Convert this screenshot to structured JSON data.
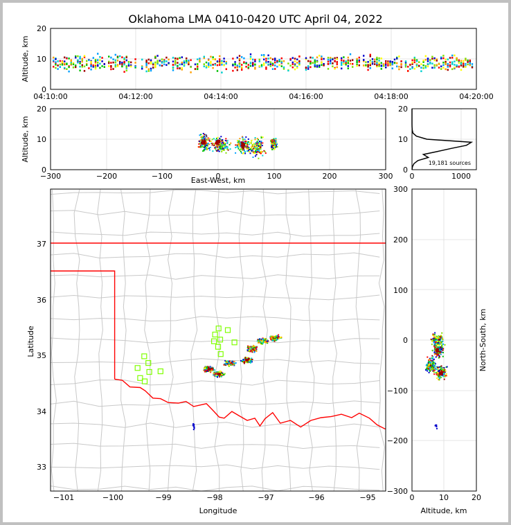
{
  "title": "Oklahoma LMA 0410-0420 UTC April 04, 2022",
  "colors": {
    "frame": "#c0c0c0",
    "state_border": "#ff0000",
    "counties": "#c8c8c8",
    "stations": "#7fff00",
    "profile": "#000000"
  },
  "panels": {
    "time_height": {
      "ylabel": "Altitude, km",
      "yticks": [
        "0",
        "10",
        "20"
      ],
      "xticks": [
        "04:10:00",
        "04:12:00",
        "04:14:00",
        "04:16:00",
        "04:18:00",
        "04:20:00"
      ]
    },
    "ew_height": {
      "ylabel": "Altitude, km",
      "xlabel": "East-West, km",
      "yticks": [
        "0",
        "10",
        "20"
      ],
      "xticks": [
        "−300",
        "−200",
        "−100",
        "0",
        "100",
        "200",
        "300"
      ]
    },
    "histogram": {
      "yticks": [
        "0",
        "10",
        "20"
      ],
      "xticks": [
        "0",
        "1000"
      ],
      "annotation": "19,181 sources"
    },
    "map": {
      "xlabel": "Longitude",
      "ylabel": "Latitude",
      "xticks": [
        "−101",
        "−100",
        "−99",
        "−98",
        "−97",
        "−96",
        "−95"
      ],
      "yticks": [
        "33",
        "34",
        "35",
        "36",
        "37"
      ]
    },
    "ns_height": {
      "xlabel": "Altitude, km",
      "ylabel": "North-South, km",
      "xticks": [
        "0",
        "10",
        "20"
      ],
      "yticks": [
        "300",
        "200",
        "100",
        "0",
        "−100",
        "−200",
        "−300"
      ]
    }
  },
  "chart_data": [
    {
      "type": "scatter",
      "panel": "time-height",
      "xlabel": "",
      "ylabel": "Altitude, km",
      "xlim": [
        "04:10:00",
        "04:20:00"
      ],
      "ylim": [
        0,
        20
      ],
      "description_values": {
        "altitude_range_km": [
          1,
          13
        ],
        "dense_core_km": [
          7,
          10
        ]
      }
    },
    {
      "type": "scatter",
      "panel": "east-west-height",
      "xlabel": "East-West, km",
      "ylabel": "Altitude, km",
      "xlim": [
        -300,
        300
      ],
      "ylim": [
        0,
        20
      ],
      "clusters": [
        {
          "x": -25,
          "y": 9
        },
        {
          "x": 0,
          "y": 9
        },
        {
          "x": 45,
          "y": 8
        },
        {
          "x": 100,
          "y": 8.5
        }
      ]
    },
    {
      "type": "line",
      "panel": "altitude-histogram",
      "xlim": [
        0,
        1300
      ],
      "ylim": [
        0,
        20
      ],
      "y": [
        0,
        1,
        2,
        3,
        4,
        5,
        6,
        7,
        8,
        9,
        10,
        11,
        12,
        13,
        14,
        15,
        16,
        17,
        18,
        19,
        20
      ],
      "x": [
        0,
        10,
        40,
        120,
        330,
        230,
        520,
        800,
        1100,
        1200,
        300,
        90,
        20,
        5,
        2,
        0,
        0,
        0,
        0,
        0,
        0
      ],
      "annotation": "19,181 sources"
    },
    {
      "type": "scatter",
      "panel": "map",
      "xlabel": "Longitude",
      "ylabel": "Latitude",
      "xlim": [
        -101.25,
        -94.7
      ],
      "ylim": [
        32.55,
        37.95
      ],
      "clusters": [
        {
          "lon": -98.15,
          "lat": 34.74
        },
        {
          "lon": -97.95,
          "lat": 34.65
        },
        {
          "lon": -97.75,
          "lat": 34.85
        },
        {
          "lon": -97.4,
          "lat": 34.9
        },
        {
          "lon": -97.3,
          "lat": 35.1
        },
        {
          "lon": -97.1,
          "lat": 35.25
        },
        {
          "lon": -96.85,
          "lat": 35.3
        }
      ],
      "stations": [
        {
          "lon": -97.96,
          "lat": 35.47
        },
        {
          "lon": -97.78,
          "lat": 35.44
        },
        {
          "lon": -98.03,
          "lat": 35.36
        },
        {
          "lon": -98.05,
          "lat": 35.24
        },
        {
          "lon": -97.93,
          "lat": 35.27
        },
        {
          "lon": -97.97,
          "lat": 35.14
        },
        {
          "lon": -97.92,
          "lat": 35.01
        },
        {
          "lon": -97.65,
          "lat": 35.22
        },
        {
          "lon": -99.42,
          "lat": 34.97
        },
        {
          "lon": -99.34,
          "lat": 34.85
        },
        {
          "lon": -99.55,
          "lat": 34.76
        },
        {
          "lon": -99.32,
          "lat": 34.69
        },
        {
          "lon": -99.5,
          "lat": 34.58
        },
        {
          "lon": -99.41,
          "lat": 34.52
        },
        {
          "lon": -99.1,
          "lat": 34.7
        }
      ]
    },
    {
      "type": "scatter",
      "panel": "north-south-height",
      "xlabel": "Altitude, km",
      "ylabel": "North-South, km",
      "xlim": [
        0,
        20
      ],
      "ylim": [
        -300,
        300
      ],
      "clusters": [
        {
          "x": 8,
          "y": 0
        },
        {
          "x": 8,
          "y": -20
        },
        {
          "x": 6,
          "y": -50
        },
        {
          "x": 9,
          "y": -65
        }
      ]
    }
  ]
}
